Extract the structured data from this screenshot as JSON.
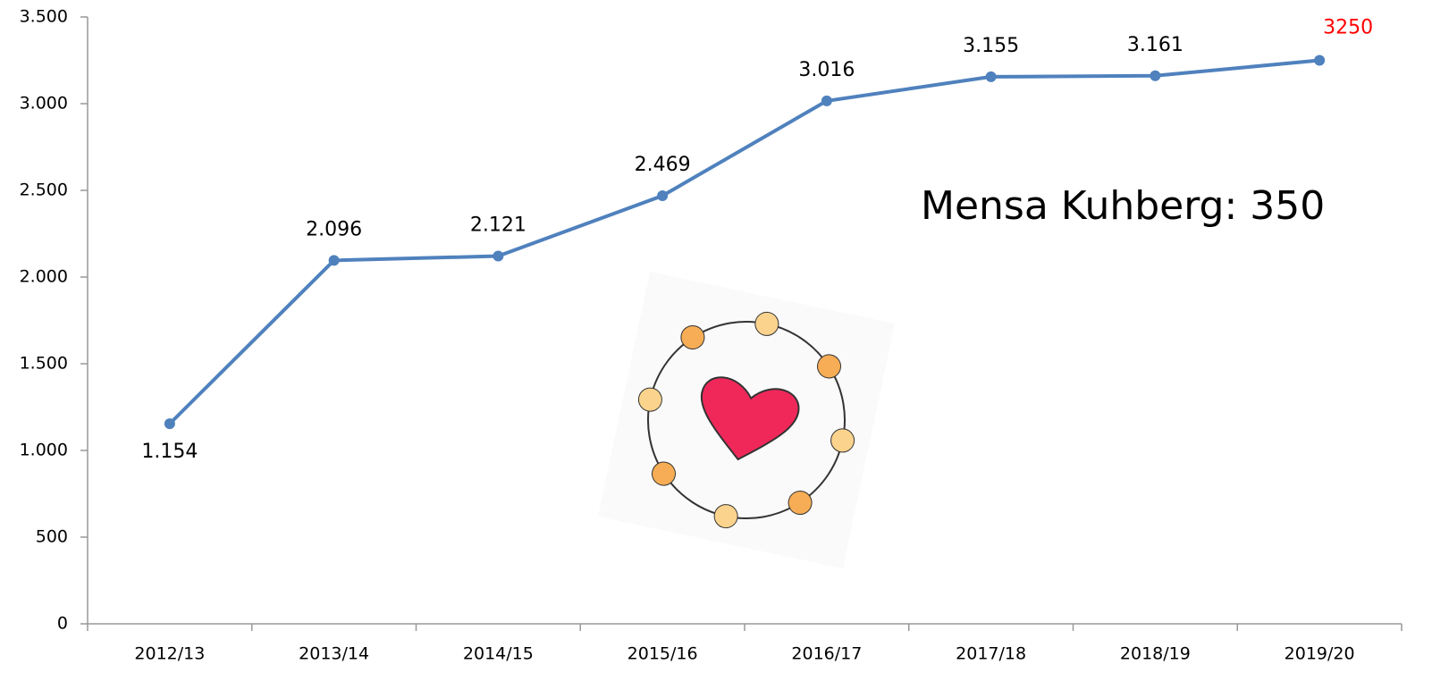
{
  "chart_data": {
    "type": "line",
    "categories": [
      "2012/13",
      "2013/14",
      "2014/15",
      "2015/16",
      "2016/17",
      "2017/18",
      "2018/19",
      "2019/20"
    ],
    "series": [
      {
        "color": "#4f81bd",
        "values": [
          1154,
          2096,
          2121,
          2469,
          3016,
          3155,
          3161,
          3250
        ],
        "value_labels": [
          "1.154",
          "2.096",
          "2.121",
          "2.469",
          "3.016",
          "3.155",
          "3.161",
          "3250"
        ],
        "value_label_colors": [
          "#000000",
          "#000000",
          "#000000",
          "#000000",
          "#000000",
          "#000000",
          "#000000",
          "#ff0000"
        ]
      }
    ],
    "ylim": [
      0,
      3500
    ],
    "yticks": [
      0,
      500,
      {
        "value": 1000,
        "label": "1.000"
      },
      {
        "value": 1500,
        "label": "1.500"
      },
      {
        "value": 2000,
        "label": "2.000"
      },
      {
        "value": 2500,
        "label": "2.500"
      },
      {
        "value": 3000,
        "label": "3.000"
      },
      {
        "value": 3500,
        "label": "3.500"
      }
    ],
    "annotation": "Mensa Kuhberg: 350"
  }
}
